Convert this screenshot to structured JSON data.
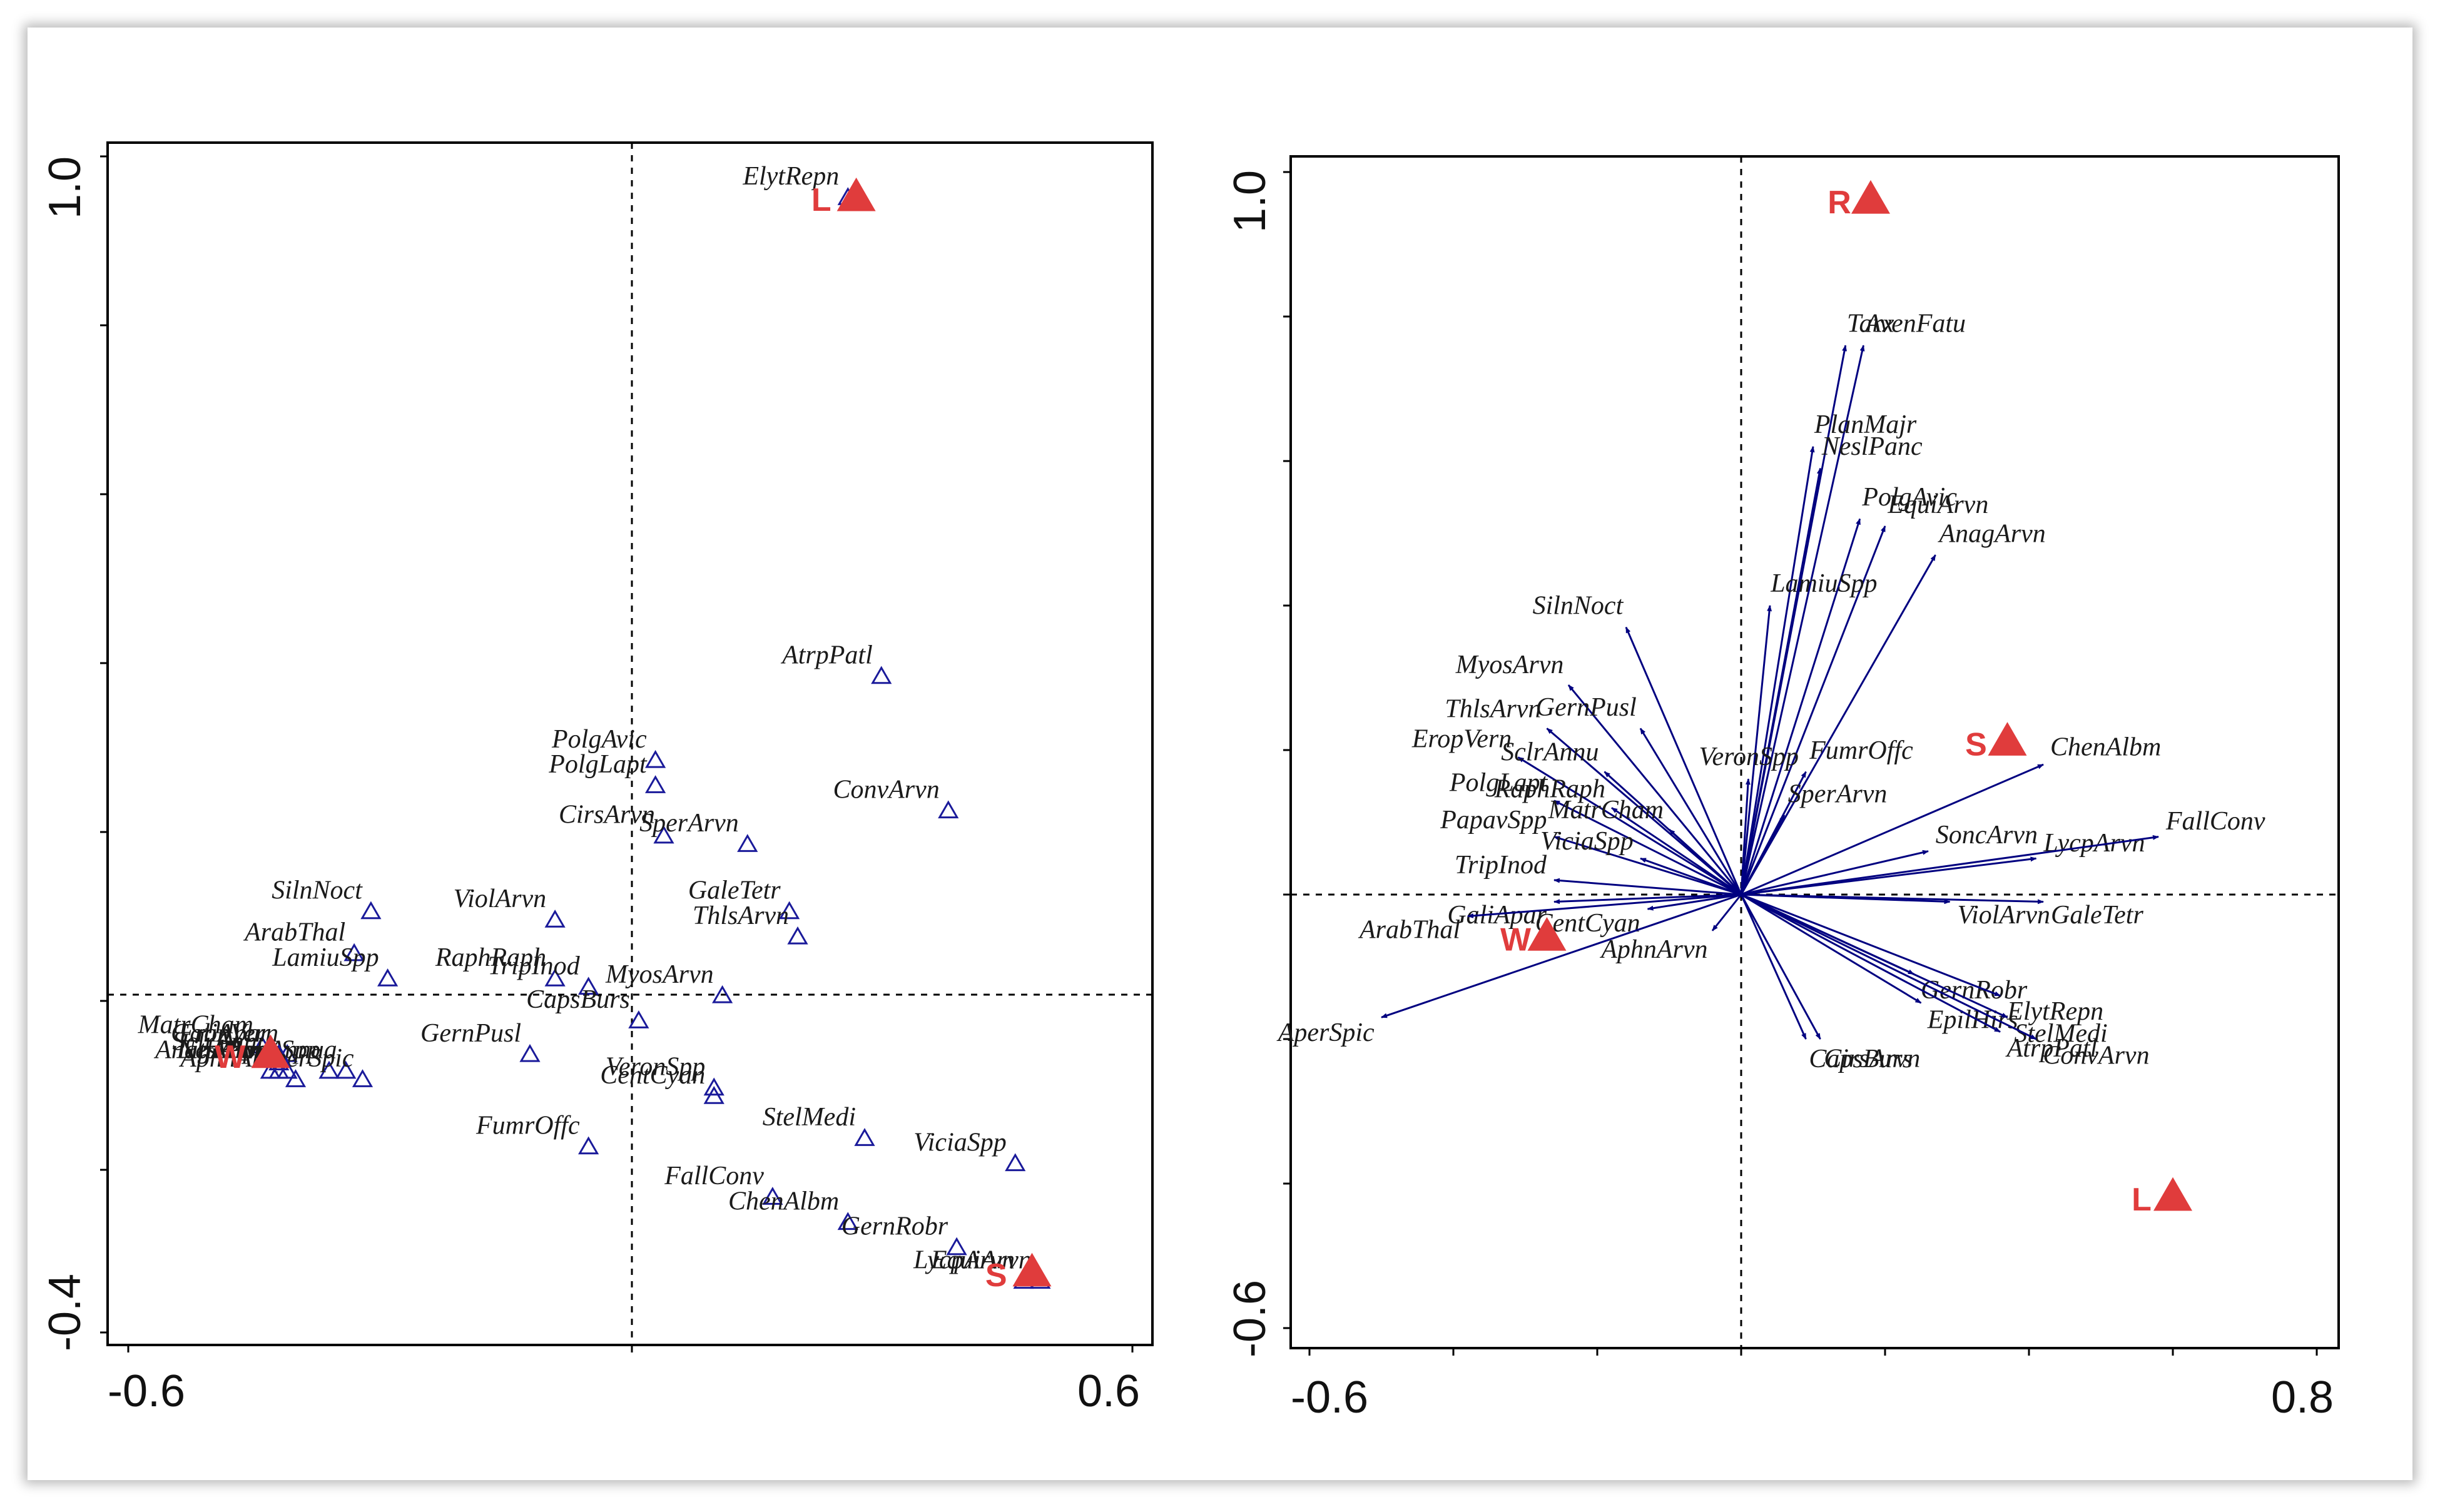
{
  "chart_data": [
    {
      "type": "scatter",
      "title": "",
      "x_tick_labels": [
        "-0.6",
        "0.6"
      ],
      "y_tick_labels": [
        "1.0",
        "-0.4"
      ],
      "xlim": [
        -0.6,
        0.6
      ],
      "ylim": [
        -0.4,
        1.0
      ],
      "species_marker": "open-triangle",
      "environment_marker": "filled-triangle",
      "species": [
        {
          "label": "ElytRepn",
          "x": 0.26,
          "y": 0.95
        },
        {
          "label": "AtrpPatl",
          "x": 0.3,
          "y": 0.38
        },
        {
          "label": "PolgAvic",
          "x": 0.03,
          "y": 0.28
        },
        {
          "label": "PolgLapt",
          "x": 0.03,
          "y": 0.25
        },
        {
          "label": "ConvArvn",
          "x": 0.38,
          "y": 0.22
        },
        {
          "label": "CirsArvn",
          "x": 0.04,
          "y": 0.19
        },
        {
          "label": "SperArvn",
          "x": 0.14,
          "y": 0.18
        },
        {
          "label": "GaleTetr",
          "x": 0.19,
          "y": 0.1
        },
        {
          "label": "ThlsArvn",
          "x": 0.2,
          "y": 0.07
        },
        {
          "label": "SilnNoct",
          "x": -0.31,
          "y": 0.1
        },
        {
          "label": "ViolArvn",
          "x": -0.09,
          "y": 0.09
        },
        {
          "label": "ArabThal",
          "x": -0.33,
          "y": 0.05
        },
        {
          "label": "LamiuSpp",
          "x": -0.29,
          "y": 0.02
        },
        {
          "label": "RaphRaph",
          "x": -0.09,
          "y": 0.02
        },
        {
          "label": "TripInod",
          "x": -0.05,
          "y": 0.01
        },
        {
          "label": "MyosArvn",
          "x": 0.11,
          "y": 0.0
        },
        {
          "label": "CapsBurs",
          "x": 0.01,
          "y": -0.03
        },
        {
          "label": "MatrCham",
          "x": -0.44,
          "y": -0.06
        },
        {
          "label": "EropVern",
          "x": -0.41,
          "y": -0.07
        },
        {
          "label": "SclrAnnu",
          "x": -0.42,
          "y": -0.08
        },
        {
          "label": "PapavSpp",
          "x": -0.36,
          "y": -0.09
        },
        {
          "label": "PoaAnnua",
          "x": -0.34,
          "y": -0.09
        },
        {
          "label": "AperSpic",
          "x": -0.32,
          "y": -0.1
        },
        {
          "label": "GernPusl",
          "x": -0.12,
          "y": -0.07
        },
        {
          "label": "VeronSpp",
          "x": 0.1,
          "y": -0.11
        },
        {
          "label": "CentCyan",
          "x": 0.1,
          "y": -0.12
        },
        {
          "label": "StelMedi",
          "x": 0.28,
          "y": -0.17
        },
        {
          "label": "FumrOffc",
          "x": -0.05,
          "y": -0.18
        },
        {
          "label": "ViciaSpp",
          "x": 0.46,
          "y": -0.2
        },
        {
          "label": "FallConv",
          "x": 0.17,
          "y": -0.24
        },
        {
          "label": "ChenAlbm",
          "x": 0.26,
          "y": -0.27
        },
        {
          "label": "GernRobr",
          "x": 0.39,
          "y": -0.3
        },
        {
          "label": "GaliApar",
          "x": -0.42,
          "y": -0.07
        },
        {
          "label": "AnagArvn",
          "x": -0.43,
          "y": -0.09
        },
        {
          "label": "AphnArvn",
          "x": -0.4,
          "y": -0.1
        },
        {
          "label": "NeslPanc",
          "x": -0.41,
          "y": -0.09
        },
        {
          "label": "LithArvn",
          "x": -0.42,
          "y": -0.09
        },
        {
          "label": "LycpArvn",
          "x": 0.47,
          "y": -0.34
        },
        {
          "label": "EquiArvn",
          "x": 0.49,
          "y": -0.34
        }
      ],
      "environment": [
        {
          "label": "L",
          "x": 0.27,
          "y": 0.95
        },
        {
          "label": "W",
          "x": -0.43,
          "y": -0.07
        },
        {
          "label": "S",
          "x": 0.48,
          "y": -0.33
        }
      ]
    },
    {
      "type": "scatter",
      "title": "",
      "x_tick_labels": [
        "-0.6",
        "0.8"
      ],
      "y_tick_labels": [
        "1.0",
        "-0.6"
      ],
      "xlim": [
        -0.6,
        0.8
      ],
      "ylim": [
        -0.6,
        1.0
      ],
      "species_marker": "arrow-from-origin",
      "environment_marker": "filled-triangle",
      "species": [
        {
          "label": "Tarx",
          "x": 0.145,
          "y": 0.76
        },
        {
          "label": "AvenFatu",
          "x": 0.17,
          "y": 0.76
        },
        {
          "label": "PlanMajr",
          "x": 0.1,
          "y": 0.62
        },
        {
          "label": "NeslPanc",
          "x": 0.11,
          "y": 0.59
        },
        {
          "label": "PolgAvic",
          "x": 0.165,
          "y": 0.52
        },
        {
          "label": "EquiArvn",
          "x": 0.2,
          "y": 0.51
        },
        {
          "label": "AnagArvn",
          "x": 0.27,
          "y": 0.47
        },
        {
          "label": "LamiuSpp",
          "x": 0.04,
          "y": 0.4
        },
        {
          "label": "SilnNoct",
          "x": -0.16,
          "y": 0.37
        },
        {
          "label": "MyosArvn",
          "x": -0.24,
          "y": 0.29
        },
        {
          "label": "ThlsArvn",
          "x": -0.27,
          "y": 0.23
        },
        {
          "label": "GernPusl",
          "x": -0.14,
          "y": 0.23
        },
        {
          "label": "EropVern",
          "x": -0.31,
          "y": 0.19
        },
        {
          "label": "SclrAnnu",
          "x": -0.19,
          "y": 0.17
        },
        {
          "label": "PolgLapt",
          "x": -0.26,
          "y": 0.13
        },
        {
          "label": "RaphRaph",
          "x": -0.18,
          "y": 0.12
        },
        {
          "label": "VeronSpp",
          "x": 0.01,
          "y": 0.16
        },
        {
          "label": "FumrOffc",
          "x": 0.09,
          "y": 0.17
        },
        {
          "label": "MatrCham",
          "x": -0.1,
          "y": 0.09
        },
        {
          "label": "SperArvn",
          "x": 0.06,
          "y": 0.11
        },
        {
          "label": "PapavSpp",
          "x": -0.26,
          "y": 0.08
        },
        {
          "label": "ViciaSpp",
          "x": -0.14,
          "y": 0.05
        },
        {
          "label": "TripInod",
          "x": -0.26,
          "y": 0.02
        },
        {
          "label": "GaliApar",
          "x": -0.26,
          "y": -0.01
        },
        {
          "label": "CentCyan",
          "x": -0.13,
          "y": -0.02
        },
        {
          "label": "ArabThal",
          "x": -0.38,
          "y": -0.03
        },
        {
          "label": "AphnArvn",
          "x": -0.04,
          "y": -0.05
        },
        {
          "label": "SoncArvn",
          "x": 0.26,
          "y": 0.06
        },
        {
          "label": "ChenAlbm",
          "x": 0.42,
          "y": 0.18
        },
        {
          "label": "LycpArvn",
          "x": 0.41,
          "y": 0.05
        },
        {
          "label": "FallConv",
          "x": 0.58,
          "y": 0.08
        },
        {
          "label": "GaleTetr",
          "x": 0.42,
          "y": -0.01
        },
        {
          "label": "ViolArvn",
          "x": 0.29,
          "y": -0.01
        },
        {
          "label": "GernRobr",
          "x": 0.24,
          "y": -0.11
        },
        {
          "label": "ElytRepn",
          "x": 0.36,
          "y": -0.14
        },
        {
          "label": "EpilHirs",
          "x": 0.25,
          "y": -0.15
        },
        {
          "label": "StelMedi",
          "x": 0.37,
          "y": -0.17
        },
        {
          "label": "CirsArvn",
          "x": 0.11,
          "y": -0.2
        },
        {
          "label": "ConvArvn",
          "x": 0.41,
          "y": -0.2
        },
        {
          "label": "AtrpPatl",
          "x": 0.36,
          "y": -0.19
        },
        {
          "label": "CapsBurs",
          "x": 0.09,
          "y": -0.2
        },
        {
          "label": "AperSpic",
          "x": -0.5,
          "y": -0.17
        }
      ],
      "environment": [
        {
          "label": "R",
          "x": 0.18,
          "y": 0.96
        },
        {
          "label": "S",
          "x": 0.37,
          "y": 0.21
        },
        {
          "label": "W",
          "x": -0.27,
          "y": -0.06
        },
        {
          "label": "L",
          "x": 0.6,
          "y": -0.42
        }
      ]
    }
  ]
}
